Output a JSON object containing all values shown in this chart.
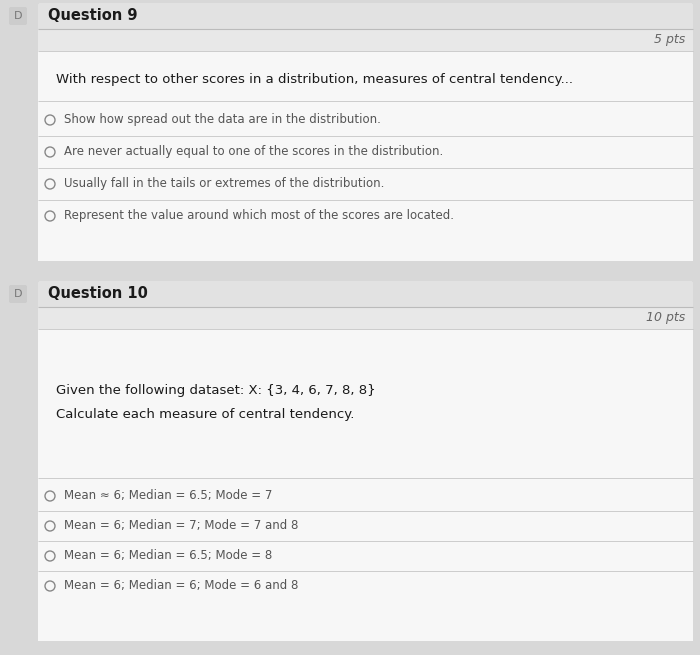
{
  "page_bg": "#d8d8d8",
  "card_outer_bg": "#e8e8e8",
  "card_inner_bg": "#f2f2f2",
  "header_bg": "#e2e2e2",
  "inner_white": "#f7f7f7",
  "line_color": "#cccccc",
  "header_line_color": "#bbbbbb",
  "text_dark": "#1a1a1a",
  "text_medium": "#333333",
  "text_light": "#555555",
  "radio_color": "#888888",
  "checkbox_bg": "#cccccc",
  "checkbox_text": "#777777",
  "pts_color": "#666666",
  "q9_label": "Question 9",
  "q9_pts": "5 pts",
  "q9_prompt": "With respect to other scores in a distribution, measures of central tendency...",
  "q9_options": [
    "Show how spread out the data are in the distribution.",
    "Are never actually equal to one of the scores in the distribution.",
    "Usually fall in the tails or extremes of the distribution.",
    "Represent the value around which most of the scores are located."
  ],
  "q10_label": "Question 10",
  "q10_pts": "10 pts",
  "q10_prompt1": "Given the following dataset: X: {3, 4, 6, 7, 8, 8}",
  "q10_prompt2": "Calculate each measure of central tendency.",
  "q10_options": [
    "Mean ≈ 6; Median = 6.5; Mode = 7",
    "Mean = 6; Median = 7; Mode = 7 and 8",
    "Mean = 6; Median = 6.5; Mode = 8",
    "Mean = 6; Median = 6; Mode = 6 and 8"
  ]
}
